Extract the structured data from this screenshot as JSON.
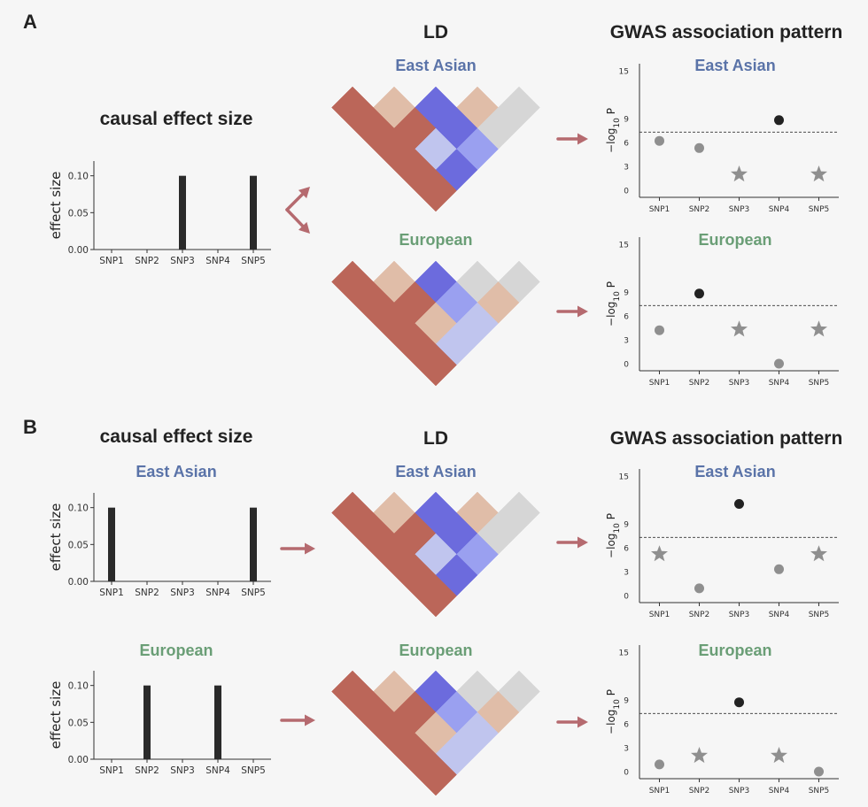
{
  "colors": {
    "east_asian": "#5a73a8",
    "european": "#6a9e76",
    "arrow": "#b56a6f",
    "bar": "#2a2a2a",
    "dot_sig": "#222222",
    "dot_nonsig": "#8f8f8f",
    "star": "#8f8f8f",
    "ld_strong": "#bb6659",
    "ld_weak": "#e0bda8",
    "ld_neg_strong": "#6c6bdd",
    "ld_neg_mid": "#9aa0f0",
    "ld_neg_weak": "#c0c5ee",
    "ld_none": "#d6d6d6"
  },
  "panels": [
    {
      "letter": "A",
      "causal": {
        "title": "causal effect size",
        "charts": [
          {
            "population": "",
            "values": [
              0,
              0,
              0.1,
              0,
              0.1
            ]
          }
        ]
      },
      "ld_title": "LD",
      "gwas_title": "GWAS association pattern",
      "populations": [
        "East Asian",
        "European"
      ]
    },
    {
      "letter": "B",
      "causal": {
        "title": "causal effect size",
        "charts": [
          {
            "population": "East Asian",
            "values": [
              0.1,
              0,
              0,
              0,
              0.1
            ]
          },
          {
            "population": "European",
            "values": [
              0,
              0.1,
              0,
              0.1,
              0
            ]
          }
        ]
      },
      "ld_title": "LD",
      "gwas_title": "GWAS association pattern",
      "populations": [
        "East Asian",
        "European"
      ]
    }
  ],
  "chart_data": [
    {
      "type": "bar",
      "id": "A-causal",
      "categories": [
        "SNP1",
        "SNP2",
        "SNP3",
        "SNP4",
        "SNP5"
      ],
      "values": [
        0,
        0,
        0.1,
        0,
        0.1
      ],
      "ylabel": "effect size",
      "yticks": [
        "0.00",
        "0.05",
        "0.10"
      ],
      "ylim": [
        0,
        0.12
      ]
    },
    {
      "type": "bar",
      "id": "B-causal-east-asian",
      "title": "East Asian",
      "categories": [
        "SNP1",
        "SNP2",
        "SNP3",
        "SNP4",
        "SNP5"
      ],
      "values": [
        0.1,
        0,
        0,
        0,
        0.1
      ],
      "ylabel": "effect size",
      "yticks": [
        "0.00",
        "0.05",
        "0.10"
      ],
      "ylim": [
        0,
        0.12
      ]
    },
    {
      "type": "bar",
      "id": "B-causal-european",
      "title": "European",
      "categories": [
        "SNP1",
        "SNP2",
        "SNP3",
        "SNP4",
        "SNP5"
      ],
      "values": [
        0,
        0.1,
        0,
        0.1,
        0
      ],
      "ylabel": "effect size",
      "yticks": [
        "0.00",
        "0.05",
        "0.10"
      ],
      "ylim": [
        0,
        0.12
      ]
    },
    {
      "type": "heatmap",
      "id": "A-ld-east-asian",
      "title": "East Asian",
      "matrix_levels": [
        [
          "strong",
          "weak",
          "neg_strong",
          "weak",
          "none"
        ],
        [
          "strong",
          "strong",
          "neg_strong",
          "none"
        ],
        [
          "strong",
          "neg_weak",
          "neg_mid"
        ],
        [
          "strong",
          "neg_strong"
        ],
        [
          "strong"
        ]
      ]
    },
    {
      "type": "heatmap",
      "id": "A-ld-european",
      "title": "European",
      "matrix_levels": [
        [
          "strong",
          "weak",
          "neg_strong",
          "none",
          "none"
        ],
        [
          "strong",
          "strong",
          "neg_mid",
          "weak"
        ],
        [
          "strong",
          "weak",
          "neg_weak"
        ],
        [
          "strong",
          "neg_weak"
        ],
        [
          "strong"
        ]
      ]
    },
    {
      "type": "heatmap",
      "id": "B-ld-east-asian",
      "title": "East Asian",
      "matrix_levels": [
        [
          "strong",
          "weak",
          "neg_strong",
          "weak",
          "none"
        ],
        [
          "strong",
          "strong",
          "neg_strong",
          "none"
        ],
        [
          "strong",
          "neg_weak",
          "neg_mid"
        ],
        [
          "strong",
          "neg_strong"
        ],
        [
          "strong"
        ]
      ]
    },
    {
      "type": "heatmap",
      "id": "B-ld-european",
      "title": "European",
      "matrix_levels": [
        [
          "strong",
          "weak",
          "neg_strong",
          "none",
          "none"
        ],
        [
          "strong",
          "strong",
          "neg_mid",
          "weak"
        ],
        [
          "strong",
          "weak",
          "neg_weak"
        ],
        [
          "strong",
          "neg_weak"
        ],
        [
          "strong"
        ]
      ]
    },
    {
      "type": "scatter",
      "id": "A-gwas-east-asian",
      "title": "East Asian",
      "categories": [
        "SNP1",
        "SNP2",
        "SNP3",
        "SNP4",
        "SNP5"
      ],
      "ylabel": "−log10 P",
      "yticks": [
        0,
        3,
        6,
        9,
        15
      ],
      "ylim": [
        0,
        15
      ],
      "threshold": 7.3,
      "points": [
        {
          "snp": "SNP1",
          "y": 6.2,
          "marker": "dot",
          "significant": false
        },
        {
          "snp": "SNP2",
          "y": 5.3,
          "marker": "dot",
          "significant": false
        },
        {
          "snp": "SNP3",
          "y": 2.0,
          "marker": "star",
          "significant": false
        },
        {
          "snp": "SNP4",
          "y": 8.8,
          "marker": "dot",
          "significant": true
        },
        {
          "snp": "SNP5",
          "y": 2.0,
          "marker": "star",
          "significant": false
        }
      ]
    },
    {
      "type": "scatter",
      "id": "A-gwas-european",
      "title": "European",
      "categories": [
        "SNP1",
        "SNP2",
        "SNP3",
        "SNP4",
        "SNP5"
      ],
      "ylabel": "−log10 P",
      "yticks": [
        0,
        3,
        6,
        9,
        15
      ],
      "ylim": [
        0,
        15
      ],
      "threshold": 7.3,
      "points": [
        {
          "snp": "SNP1",
          "y": 4.2,
          "marker": "dot",
          "significant": false
        },
        {
          "snp": "SNP2",
          "y": 8.8,
          "marker": "dot",
          "significant": true
        },
        {
          "snp": "SNP3",
          "y": 4.3,
          "marker": "star",
          "significant": false
        },
        {
          "snp": "SNP4",
          "y": 0.0,
          "marker": "dot",
          "significant": false
        },
        {
          "snp": "SNP5",
          "y": 4.3,
          "marker": "star",
          "significant": false
        }
      ]
    },
    {
      "type": "scatter",
      "id": "B-gwas-east-asian",
      "title": "East Asian",
      "categories": [
        "SNP1",
        "SNP2",
        "SNP3",
        "SNP4",
        "SNP5"
      ],
      "ylabel": "−log10 P",
      "yticks": [
        0,
        3,
        6,
        9,
        15
      ],
      "ylim": [
        0,
        15
      ],
      "threshold": 7.3,
      "points": [
        {
          "snp": "SNP1",
          "y": 5.2,
          "marker": "star",
          "significant": false
        },
        {
          "snp": "SNP2",
          "y": 0.9,
          "marker": "dot",
          "significant": false
        },
        {
          "snp": "SNP3",
          "y": 11.5,
          "marker": "dot",
          "significant": true
        },
        {
          "snp": "SNP4",
          "y": 3.3,
          "marker": "dot",
          "significant": false
        },
        {
          "snp": "SNP5",
          "y": 5.2,
          "marker": "star",
          "significant": false
        }
      ]
    },
    {
      "type": "scatter",
      "id": "B-gwas-european",
      "title": "European",
      "categories": [
        "SNP1",
        "SNP2",
        "SNP3",
        "SNP4",
        "SNP5"
      ],
      "ylabel": "−log10 P",
      "yticks": [
        0,
        3,
        6,
        9,
        15
      ],
      "ylim": [
        0,
        15
      ],
      "threshold": 7.3,
      "points": [
        {
          "snp": "SNP1",
          "y": 0.9,
          "marker": "dot",
          "significant": false
        },
        {
          "snp": "SNP2",
          "y": 2.0,
          "marker": "star",
          "significant": false
        },
        {
          "snp": "SNP3",
          "y": 8.7,
          "marker": "dot",
          "significant": true
        },
        {
          "snp": "SNP4",
          "y": 2.0,
          "marker": "star",
          "significant": false
        },
        {
          "snp": "SNP5",
          "y": 0.0,
          "marker": "dot",
          "significant": false
        }
      ]
    }
  ]
}
